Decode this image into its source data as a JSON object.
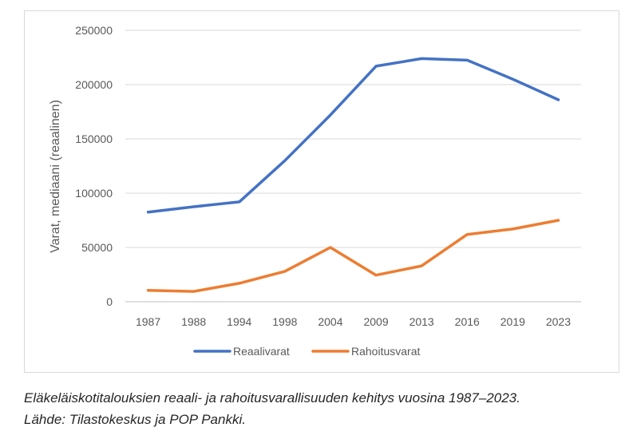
{
  "chart_data": {
    "type": "line",
    "categories": [
      "1987",
      "1988",
      "1994",
      "1998",
      "2004",
      "2009",
      "2013",
      "2016",
      "2019",
      "2023"
    ],
    "series": [
      {
        "name": "Reaalivarat",
        "color": "#4472c4",
        "values": [
          82500,
          87500,
          92000,
          130000,
          172000,
          217000,
          224000,
          222500,
          205000,
          186000
        ]
      },
      {
        "name": "Rahoitusvarat",
        "color": "#ed7d31",
        "values": [
          10500,
          9500,
          17000,
          28000,
          50000,
          24500,
          33000,
          62000,
          67000,
          75000
        ]
      }
    ],
    "title": "",
    "xlabel": "",
    "ylabel": "Varat, mediaani (reaalinen)",
    "ylim": [
      0,
      250000
    ],
    "yticks": [
      "0",
      "50000",
      "100000",
      "150000",
      "200000",
      "250000"
    ],
    "grid": "horizontal",
    "legend": "bottom"
  },
  "caption": {
    "line1": "Eläkeläiskotitalouksien reaali- ja rahoitusvarallisuuden kehitys vuosina 1987–2023.",
    "line2": "Lähde: Tilastokeskus ja POP Pankki."
  }
}
